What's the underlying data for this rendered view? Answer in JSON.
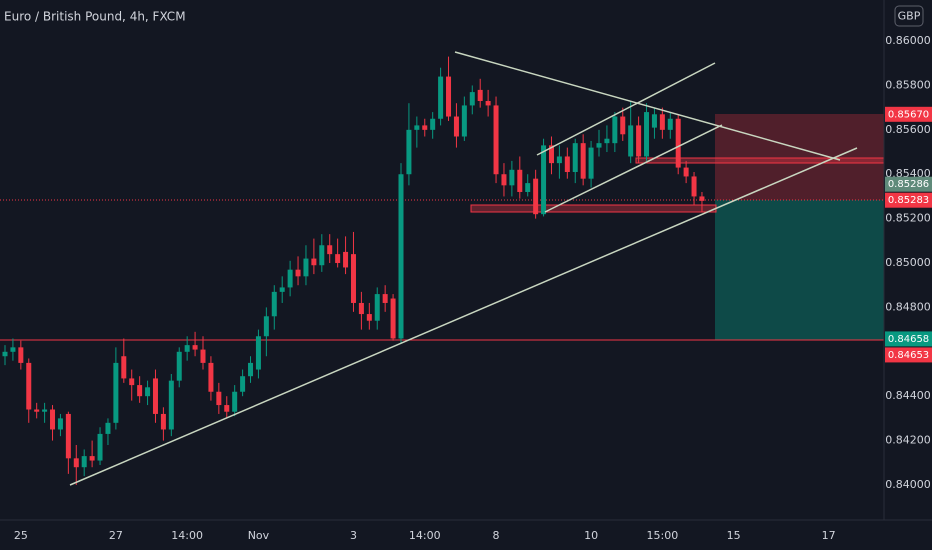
{
  "chart_data": {
    "type": "candlestick",
    "title": "Euro / British Pound, 4h, FXCM",
    "currency": "GBP",
    "up_color": "#089981",
    "down_color": "#f23645",
    "ylim": [
      0.83725,
      0.86185
    ],
    "yticks": [
      {
        "value": 0.86,
        "label": "0.86000"
      },
      {
        "value": 0.858,
        "label": "0.85800"
      },
      {
        "value": 0.856,
        "label": "0.85600"
      },
      {
        "value": 0.854,
        "label": "0.85400"
      },
      {
        "value": 0.852,
        "label": "0.85200"
      },
      {
        "value": 0.85,
        "label": "0.85000"
      },
      {
        "value": 0.848,
        "label": "0.84800"
      },
      {
        "value": 0.844,
        "label": "0.84400"
      },
      {
        "value": 0.842,
        "label": "0.84200"
      },
      {
        "value": 0.84,
        "label": "0.84000"
      }
    ],
    "price_labels": [
      {
        "value": 0.8567,
        "label": "0.85670",
        "color": "#f23645"
      },
      {
        "value": 0.85283,
        "label": "0.85283",
        "color": "#f23645"
      },
      {
        "value": 0.85286,
        "label": "0.85286",
        "color": "#5f8a7a"
      },
      {
        "value": 0.84658,
        "label": "0.84658",
        "color": "#089981"
      },
      {
        "value": 0.84653,
        "label": "0.84653",
        "color": "#f23645"
      }
    ],
    "categories": [
      null,
      null,
      "25",
      null,
      null,
      null,
      null,
      null,
      null,
      null,
      null,
      null,
      null,
      null,
      "27",
      null,
      null,
      null,
      null,
      null,
      null,
      null,
      null,
      "14:00",
      null,
      null,
      null,
      null,
      null,
      null,
      null,
      null,
      "Nov",
      null,
      null,
      null,
      null,
      null,
      null,
      null,
      null,
      null,
      null,
      null,
      "3",
      null,
      null,
      null,
      null,
      null,
      null,
      null,
      null,
      "14:00",
      null,
      null,
      null,
      null,
      null,
      null,
      null,
      null,
      "8",
      null,
      null,
      null,
      null,
      null,
      null,
      null,
      null,
      null,
      null,
      null,
      "10",
      null,
      null,
      null,
      null,
      null,
      null,
      null,
      null,
      "15:00",
      null,
      null,
      null,
      null,
      null,
      null,
      null,
      null,
      "15",
      null,
      null,
      null,
      null,
      null,
      null,
      null,
      null,
      null,
      null,
      null,
      "17",
      null
    ],
    "open": [
      0.8458,
      0.846,
      0.8462,
      0.8455,
      0.8434,
      0.8433,
      0.8434,
      0.8425,
      0.8432,
      0.8412,
      0.8408,
      0.8413,
      0.8411,
      0.8423,
      0.8428,
      0.8458,
      0.8448,
      0.8445,
      0.844,
      0.8448,
      0.8432,
      0.8425,
      0.8447,
      0.846,
      0.8463,
      0.8461,
      0.8455,
      0.8442,
      0.8436,
      0.8433,
      0.8442,
      0.8449,
      0.8452,
      0.8467,
      0.8476,
      0.8487,
      0.8489,
      0.8497,
      0.8494,
      0.8502,
      0.8499,
      0.8508,
      0.8504,
      0.8505,
      0.8504,
      0.8482,
      0.8477,
      0.8474,
      0.8486,
      0.8484,
      0.8466,
      0.854,
      0.856,
      0.8562,
      0.856,
      0.8565,
      0.8584,
      0.8566,
      0.8557,
      0.8571,
      0.8578,
      0.8573,
      0.8571,
      0.854,
      0.8535,
      0.8542,
      0.8532,
      0.8538,
      0.8522,
      0.8553,
      0.8545,
      0.8548,
      0.8541,
      0.8554,
      0.8538,
      0.8552,
      0.8554,
      0.8554,
      0.8566,
      0.8548,
      0.8562,
      0.8548,
      0.8561,
      0.8567,
      0.856,
      0.8565,
      0.8543,
      0.8539,
      0.853,
      null,
      null,
      null,
      null,
      null,
      null,
      null,
      null,
      null,
      null,
      null,
      null,
      null,
      null,
      null,
      null,
      null
    ],
    "high": [
      0.8463,
      0.8466,
      0.8465,
      0.8457,
      0.8437,
      0.8437,
      0.8436,
      0.8432,
      0.8433,
      0.8418,
      0.8416,
      0.842,
      0.8426,
      0.843,
      0.8462,
      0.8466,
      0.8452,
      0.8449,
      0.8447,
      0.8452,
      0.8435,
      0.845,
      0.8462,
      0.8467,
      0.8469,
      0.8467,
      0.8458,
      0.8446,
      0.844,
      0.8445,
      0.8452,
      0.8458,
      0.847,
      0.848,
      0.849,
      0.8494,
      0.8501,
      0.8503,
      0.8508,
      0.8511,
      0.8513,
      0.8513,
      0.8511,
      0.8512,
      0.8514,
      0.8487,
      0.8482,
      0.8489,
      0.849,
      0.8486,
      0.8545,
      0.8572,
      0.8566,
      0.8565,
      0.8568,
      0.8588,
      0.8593,
      0.8572,
      0.8575,
      0.858,
      0.8583,
      0.8578,
      0.8575,
      0.8545,
      0.8546,
      0.8548,
      0.854,
      0.8542,
      0.8556,
      0.8557,
      0.8553,
      0.8552,
      0.8556,
      0.8558,
      0.8555,
      0.856,
      0.8562,
      0.8568,
      0.857,
      0.8573,
      0.8566,
      0.8572,
      0.857,
      0.857,
      0.8568,
      0.8567,
      0.8546,
      0.8541,
      0.8532,
      null,
      null,
      null,
      null,
      null,
      null,
      null,
      null,
      null,
      null,
      null,
      null,
      null,
      null,
      null,
      null,
      null
    ],
    "low": [
      0.8454,
      0.8456,
      0.8452,
      0.8428,
      0.843,
      0.8428,
      0.842,
      0.8422,
      0.8405,
      0.84,
      0.8404,
      0.8408,
      0.8409,
      0.8418,
      0.8425,
      0.8446,
      0.8438,
      0.8437,
      0.8436,
      0.8428,
      0.842,
      0.8422,
      0.8444,
      0.8456,
      0.8458,
      0.8452,
      0.8438,
      0.8432,
      0.843,
      0.8431,
      0.844,
      0.8446,
      0.8448,
      0.8458,
      0.847,
      0.8482,
      0.8485,
      0.849,
      0.849,
      0.8495,
      0.8496,
      0.85,
      0.8498,
      0.8495,
      0.8478,
      0.847,
      0.847,
      0.847,
      0.8478,
      0.8465,
      0.8464,
      0.8535,
      0.8552,
      0.8557,
      0.8556,
      0.8562,
      0.8564,
      0.8552,
      0.8555,
      0.8567,
      0.857,
      0.8566,
      0.8536,
      0.853,
      0.853,
      0.8529,
      0.853,
      0.852,
      0.8521,
      0.854,
      0.8538,
      0.8538,
      0.8536,
      0.8535,
      0.8534,
      0.8548,
      0.855,
      0.855,
      0.8555,
      0.8545,
      0.8545,
      0.8546,
      0.8556,
      0.8556,
      0.8556,
      0.854,
      0.8536,
      0.8526,
      0.8523,
      null,
      null,
      null,
      null,
      null,
      null,
      null,
      null,
      null,
      null,
      null,
      null,
      null,
      null,
      null,
      null,
      null
    ],
    "close": [
      0.846,
      0.8462,
      0.8455,
      0.8434,
      0.8433,
      0.8434,
      0.8425,
      0.843,
      0.8412,
      0.8408,
      0.8413,
      0.8411,
      0.8423,
      0.8428,
      0.8455,
      0.8448,
      0.8445,
      0.844,
      0.8444,
      0.8432,
      0.8425,
      0.8447,
      0.846,
      0.8463,
      0.8461,
      0.8455,
      0.8442,
      0.8436,
      0.8433,
      0.8442,
      0.8449,
      0.8455,
      0.8467,
      0.8476,
      0.8487,
      0.8489,
      0.8497,
      0.8494,
      0.8502,
      0.8499,
      0.8508,
      0.8504,
      0.85,
      0.8498,
      0.8482,
      0.8477,
      0.8474,
      0.8486,
      0.8482,
      0.8466,
      0.854,
      0.856,
      0.8562,
      0.856,
      0.8565,
      0.8584,
      0.8566,
      0.8557,
      0.8571,
      0.8577,
      0.8573,
      0.8571,
      0.854,
      0.8535,
      0.8542,
      0.8532,
      0.8536,
      0.8522,
      0.8553,
      0.8545,
      0.8548,
      0.8541,
      0.8554,
      0.8538,
      0.8552,
      0.8554,
      0.8556,
      0.8566,
      0.8558,
      0.8562,
      0.8548,
      0.8568,
      0.8567,
      0.856,
      0.8565,
      0.8543,
      0.8539,
      0.853,
      0.8528,
      null,
      null,
      null,
      null,
      null,
      null,
      null,
      null,
      null,
      null,
      null,
      null,
      null,
      null,
      null,
      null,
      null
    ]
  }
}
